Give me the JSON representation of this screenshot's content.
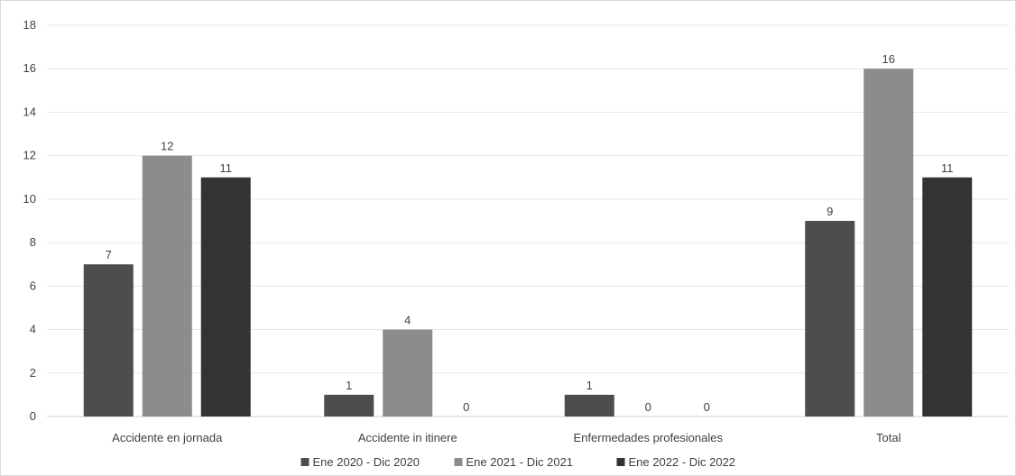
{
  "chart_data": {
    "type": "bar",
    "title": "",
    "xlabel": "",
    "ylabel": "",
    "categories": [
      "Accidente en jornada",
      "Accidente in itinere",
      "Enfermedades profesionales",
      "Total"
    ],
    "series": [
      {
        "name": "Ene 2020 - Dic 2020",
        "color": "#4d4d4d",
        "values": [
          7,
          1,
          1,
          9
        ]
      },
      {
        "name": "Ene 2021 - Dic 2021",
        "color": "#8c8c8c",
        "values": [
          12,
          4,
          0,
          16
        ]
      },
      {
        "name": "Ene 2022 - Dic 2022",
        "color": "#333333",
        "values": [
          11,
          0,
          0,
          11
        ]
      }
    ],
    "ylim": [
      0,
      18
    ],
    "yticks": [
      0,
      2,
      4,
      6,
      8,
      10,
      12,
      14,
      16,
      18
    ],
    "grid": true,
    "legend_position": "bottom"
  }
}
